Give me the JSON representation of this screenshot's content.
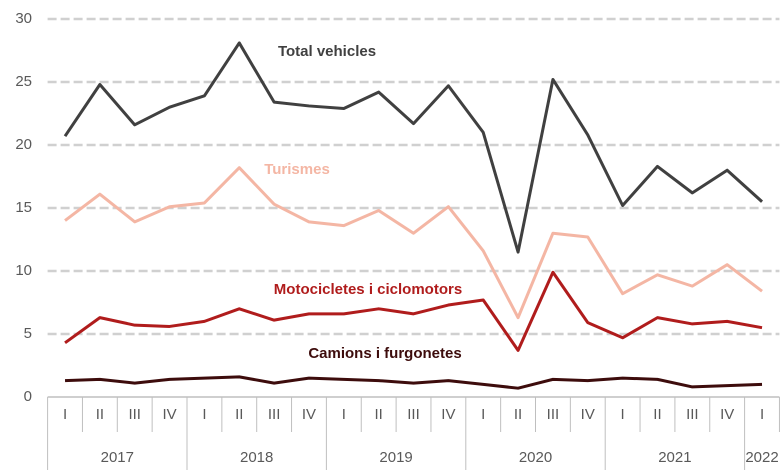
{
  "chart_data": {
    "type": "line",
    "categories": [
      "I",
      "II",
      "III",
      "IV",
      "I",
      "II",
      "III",
      "IV",
      "I",
      "II",
      "III",
      "IV",
      "I",
      "II",
      "III",
      "IV",
      "I",
      "II",
      "III",
      "IV",
      "I"
    ],
    "year_groups": [
      "2017",
      "2018",
      "2019",
      "2020",
      "2021",
      "2022"
    ],
    "series": [
      {
        "name": "Total vehicles",
        "color": "#404040",
        "values": [
          20.7,
          24.8,
          21.6,
          23.0,
          23.9,
          28.1,
          23.4,
          23.1,
          22.9,
          24.2,
          21.7,
          24.7,
          21.0,
          11.5,
          25.2,
          20.8,
          15.2,
          18.3,
          16.2,
          18.0,
          15.5
        ]
      },
      {
        "name": "Turismes",
        "color": "#f4b6a4",
        "values": [
          14.0,
          16.1,
          13.9,
          15.1,
          15.4,
          18.2,
          15.3,
          13.9,
          13.6,
          14.8,
          13.0,
          15.1,
          11.6,
          6.3,
          13.0,
          12.7,
          8.2,
          9.7,
          8.8,
          10.5,
          8.4
        ]
      },
      {
        "name": "Motocicletes i ciclomotors",
        "color": "#b01c1c",
        "values": [
          4.3,
          6.3,
          5.7,
          5.6,
          6.0,
          7.0,
          6.1,
          6.6,
          6.6,
          7.0,
          6.6,
          7.3,
          7.7,
          3.7,
          9.9,
          5.9,
          4.7,
          6.3,
          5.8,
          6.0,
          5.5
        ]
      },
      {
        "name": "Camions i furgonetes",
        "color": "#3d0c0c",
        "values": [
          1.3,
          1.4,
          1.1,
          1.4,
          1.5,
          1.6,
          1.1,
          1.5,
          1.4,
          1.3,
          1.1,
          1.3,
          1.0,
          0.7,
          1.4,
          1.3,
          1.5,
          1.4,
          0.8,
          0.9,
          1.0
        ]
      }
    ],
    "ylim": [
      0,
      30
    ],
    "yticks": [
      0,
      5,
      10,
      15,
      20,
      25,
      30
    ],
    "grid": true
  }
}
